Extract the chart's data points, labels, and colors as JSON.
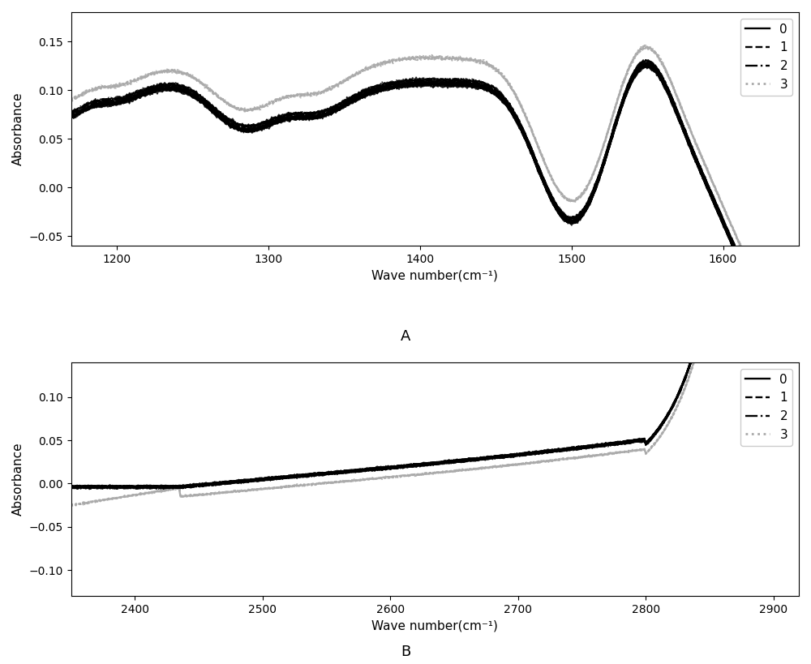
{
  "subplot_A": {
    "xmin": 1170,
    "xmax": 1650,
    "ymin": -0.06,
    "ymax": 0.18,
    "xlabel": "Wave number(cm⁻¹)",
    "ylabel": "Absorbance",
    "label": "A",
    "xticks": [
      1200,
      1300,
      1400,
      1500,
      1600
    ],
    "yticks": [
      -0.05,
      0.0,
      0.05,
      0.1,
      0.15
    ]
  },
  "subplot_B": {
    "xmin": 2350,
    "xmax": 2920,
    "ymin": -0.13,
    "ymax": 0.14,
    "xlabel": "Wave number(cm⁻¹)",
    "ylabel": "Absorbance",
    "label": "B",
    "xticks": [
      2400,
      2500,
      2600,
      2700,
      2800,
      2900
    ],
    "yticks": [
      -0.1,
      -0.05,
      0.0,
      0.05,
      0.1
    ]
  },
  "legend_labels": [
    "0",
    "1",
    "2",
    "3"
  ],
  "line_styles": [
    {
      "ls": "-",
      "color": "#000000",
      "lw": 1.2
    },
    {
      "ls": "--",
      "color": "#000000",
      "lw": 1.2
    },
    {
      "ls": "-.",
      "color": "#000000",
      "lw": 1.2
    },
    {
      "ls": ":",
      "color": "#aaaaaa",
      "lw": 1.5
    }
  ],
  "n_traces_per_class": 10,
  "alpha": 0.85
}
